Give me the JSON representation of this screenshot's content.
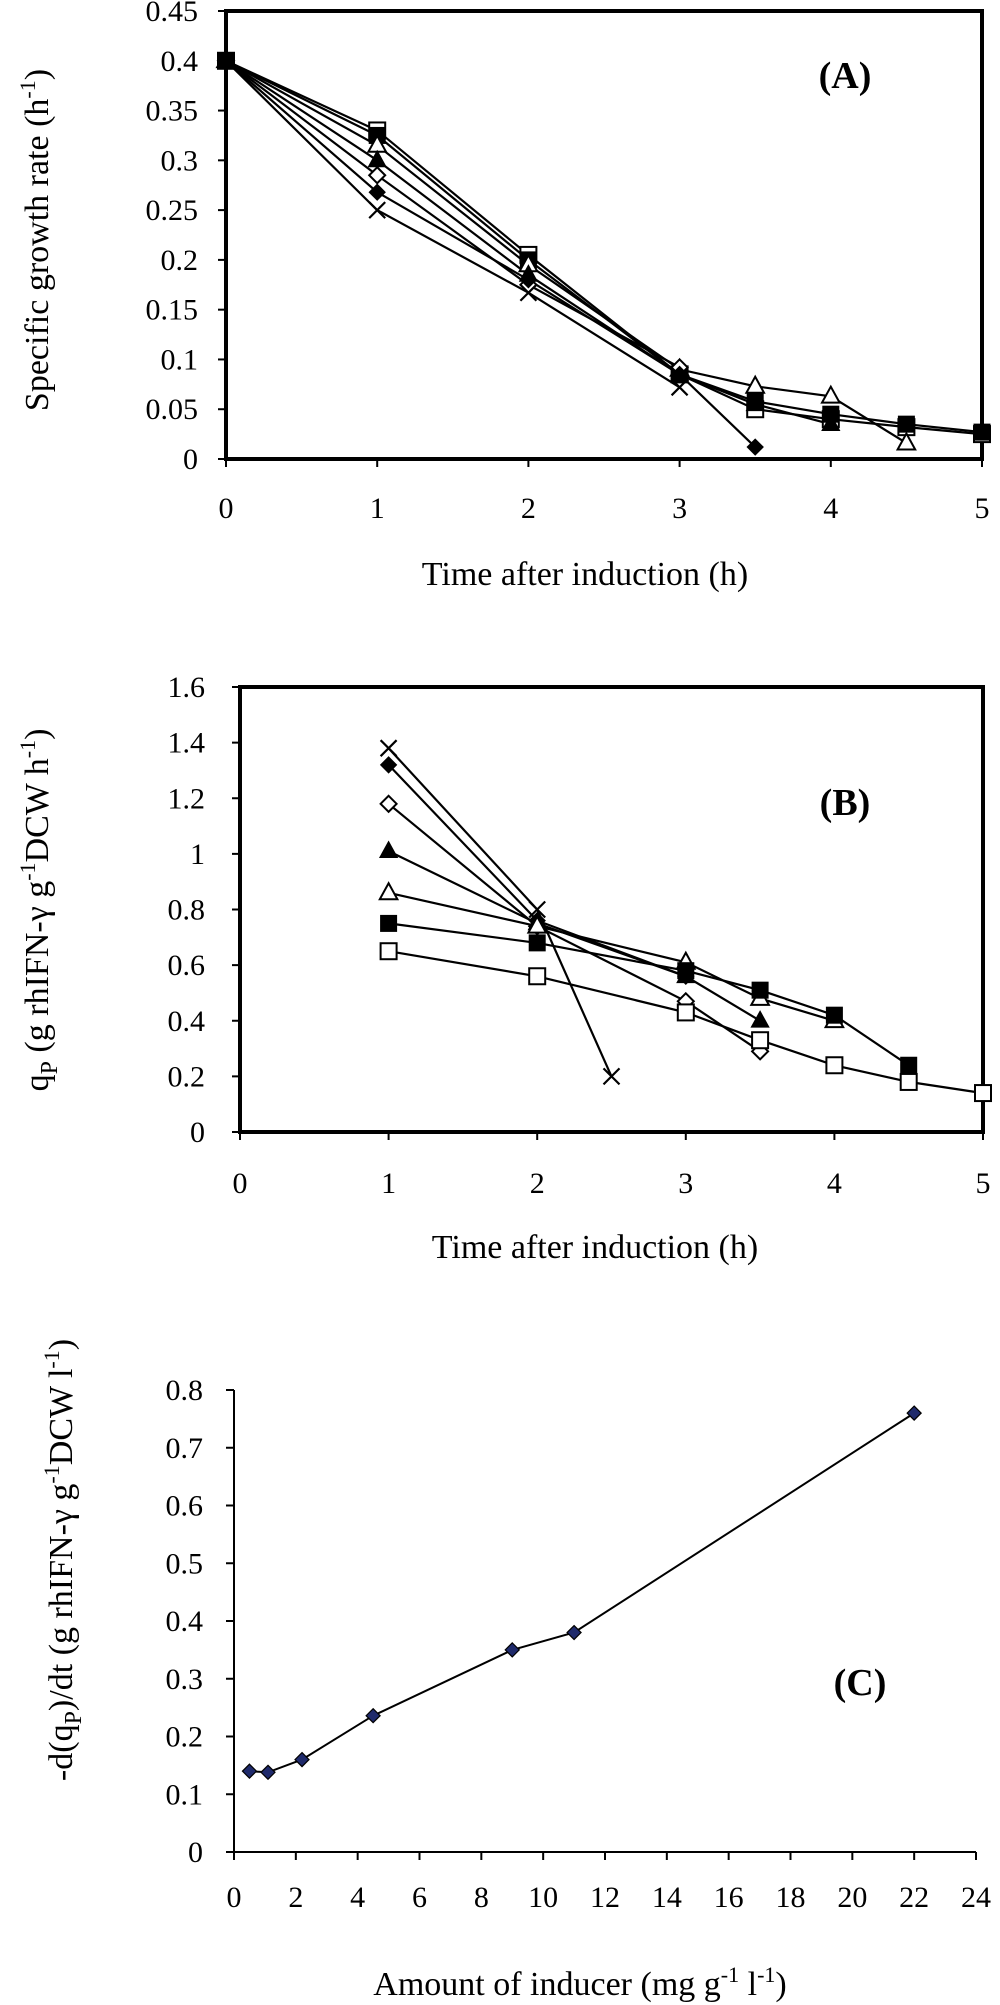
{
  "chart_data": [
    {
      "type": "line",
      "panel_label": "(A)",
      "xlabel": "Time after induction (h)",
      "ylabel": "Specific growth rate (h",
      "ylabel_sup": "-1",
      "ylabel_tail": ")",
      "xlim": [
        0,
        5
      ],
      "ylim": [
        0,
        0.45
      ],
      "xticks": [
        0,
        1,
        2,
        3,
        4,
        5
      ],
      "yticks": [
        0,
        0.05,
        0.1,
        0.15,
        0.2,
        0.25,
        0.3,
        0.35,
        0.4,
        0.45
      ],
      "xtick_labels": [
        "0",
        "1",
        "2",
        "3",
        "4",
        "5"
      ],
      "ytick_labels": [
        "0",
        "0.05",
        "0.1",
        "0.15",
        "0.2",
        "0.25",
        "0.3",
        "0.35",
        "0.4",
        "0.45"
      ],
      "grid": false,
      "series": [
        {
          "marker": "open-square",
          "x": [
            0,
            1,
            2,
            3,
            3.5,
            4,
            4.5,
            5
          ],
          "y": [
            0.4,
            0.33,
            0.205,
            0.085,
            0.05,
            0.04,
            0.032,
            0.025
          ]
        },
        {
          "marker": "filled-square",
          "x": [
            0,
            1,
            2,
            3,
            3.5,
            4,
            4.5,
            5
          ],
          "y": [
            0.4,
            0.325,
            0.2,
            0.085,
            0.058,
            0.045,
            0.035,
            0.027
          ]
        },
        {
          "marker": "open-triangle",
          "x": [
            0,
            1,
            2,
            3,
            3.5,
            4,
            4.5
          ],
          "y": [
            0.4,
            0.315,
            0.195,
            0.09,
            0.073,
            0.063,
            0.016
          ]
        },
        {
          "marker": "filled-triangle",
          "x": [
            0,
            1,
            2,
            3,
            3.5,
            4
          ],
          "y": [
            0.4,
            0.3,
            0.185,
            0.085,
            0.055,
            0.035
          ]
        },
        {
          "marker": "open-diamond",
          "x": [
            0,
            1,
            2,
            3
          ],
          "y": [
            0.4,
            0.285,
            0.175,
            0.092
          ]
        },
        {
          "marker": "filled-diamond",
          "x": [
            0,
            1,
            2,
            3,
            3.5
          ],
          "y": [
            0.4,
            0.268,
            0.18,
            0.085,
            0.012
          ]
        },
        {
          "marker": "cross",
          "x": [
            0,
            1,
            2,
            3
          ],
          "y": [
            0.4,
            0.25,
            0.167,
            0.072
          ]
        }
      ]
    },
    {
      "type": "line",
      "panel_label": "(B)",
      "xlabel": "Time after induction (h)",
      "ylabel": "q",
      "ylabel_sub": "P",
      "ylabel_mid": " (g rhIFN-γ g",
      "ylabel_sup": "-1",
      "ylabel_tail": "DCW h",
      "ylabel_sup2": "-1",
      "ylabel_end": ")",
      "xlim": [
        0,
        5
      ],
      "ylim": [
        0,
        1.6
      ],
      "xticks": [
        0,
        1,
        2,
        3,
        4,
        5
      ],
      "yticks": [
        0,
        0.2,
        0.4,
        0.6,
        0.8,
        1,
        1.2,
        1.4,
        1.6
      ],
      "xtick_labels": [
        "0",
        "1",
        "2",
        "3",
        "4",
        "5"
      ],
      "ytick_labels": [
        "0",
        "0.2",
        "0.4",
        "0.6",
        "0.8",
        "1",
        "1.2",
        "1.4",
        "1.6"
      ],
      "grid": false,
      "series": [
        {
          "marker": "cross",
          "x": [
            1,
            2,
            2.5
          ],
          "y": [
            1.38,
            0.8,
            0.2
          ]
        },
        {
          "marker": "filled-diamond",
          "x": [
            1,
            2,
            3
          ],
          "y": [
            1.32,
            0.76,
            0.56
          ]
        },
        {
          "marker": "open-diamond",
          "x": [
            1,
            2,
            3,
            3.5
          ],
          "y": [
            1.18,
            0.74,
            0.47,
            0.29
          ]
        },
        {
          "marker": "filled-triangle",
          "x": [
            1,
            2,
            3,
            3.5
          ],
          "y": [
            1.01,
            0.75,
            0.56,
            0.4
          ]
        },
        {
          "marker": "open-triangle",
          "x": [
            1,
            2,
            3,
            3.5,
            4
          ],
          "y": [
            0.86,
            0.74,
            0.61,
            0.48,
            0.4
          ]
        },
        {
          "marker": "filled-square",
          "x": [
            1,
            2,
            3,
            3.5,
            4,
            4.5
          ],
          "y": [
            0.75,
            0.68,
            0.58,
            0.51,
            0.42,
            0.24
          ]
        },
        {
          "marker": "open-square",
          "x": [
            1,
            2,
            3,
            3.5,
            4,
            4.5,
            5
          ],
          "y": [
            0.65,
            0.56,
            0.43,
            0.33,
            0.24,
            0.18,
            0.14
          ]
        }
      ]
    },
    {
      "type": "line",
      "panel_label": "(C)",
      "xlabel": "Amount of inducer (mg g",
      "xlabel_sup": "-1",
      "xlabel_mid": " l",
      "xlabel_sup2": "-1",
      "xlabel_end": ")",
      "ylabel": "-d(q",
      "ylabel_sub": "P",
      "ylabel_mid": ")/dt (g rhIFN-γ g",
      "ylabel_sup": "-1",
      "ylabel_tail": "DCW l",
      "ylabel_sup2": "-1",
      "ylabel_end": ")",
      "xlim": [
        0,
        24
      ],
      "ylim": [
        0,
        0.8
      ],
      "xticks": [
        0,
        2,
        4,
        6,
        8,
        10,
        12,
        14,
        16,
        18,
        20,
        22,
        24
      ],
      "yticks": [
        0,
        0.1,
        0.2,
        0.3,
        0.4,
        0.5,
        0.6,
        0.7,
        0.8
      ],
      "xtick_labels": [
        "0",
        "2",
        "4",
        "6",
        "8",
        "10",
        "12",
        "14",
        "16",
        "18",
        "20",
        "22",
        "24"
      ],
      "ytick_labels": [
        "0",
        "0.1",
        "0.2",
        "0.3",
        "0.4",
        "0.5",
        "0.6",
        "0.7",
        "0.8"
      ],
      "grid": false,
      "series": [
        {
          "marker": "navy-diamond",
          "x": [
            0.5,
            1.1,
            2.2,
            4.5,
            9,
            11,
            22
          ],
          "y": [
            0.14,
            0.138,
            0.16,
            0.236,
            0.35,
            0.38,
            0.76
          ]
        }
      ]
    }
  ]
}
